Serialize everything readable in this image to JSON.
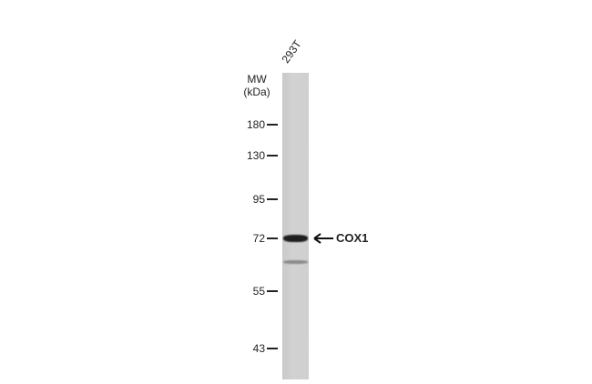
{
  "sample_label": "293T",
  "mw_title": [
    "MW",
    "(kDa)"
  ],
  "markers": [
    "180",
    "130",
    "95",
    "72",
    "55",
    "43"
  ],
  "target_label": "COX1",
  "icons": {
    "arrow": "left-arrow-icon"
  }
}
